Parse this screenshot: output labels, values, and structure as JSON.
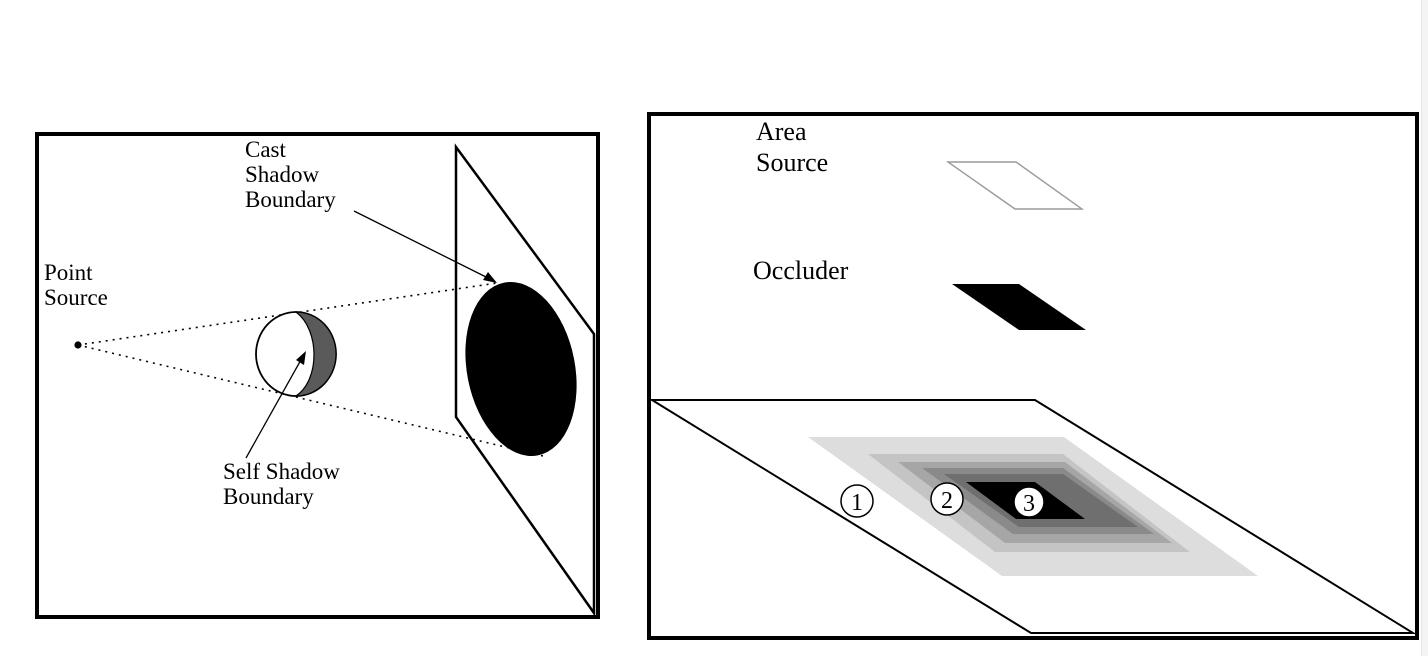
{
  "point_source_figure": {
    "point_source_label": [
      "Point",
      "Source"
    ],
    "cast_shadow_label": [
      "Cast",
      "Shadow",
      "Boundary"
    ],
    "self_shadow_label": [
      "Self Shadow",
      "Boundary"
    ]
  },
  "area_source_figure": {
    "area_source_label": [
      "Area",
      "Source"
    ],
    "occluder_label": "Occluder",
    "regions": [
      "1",
      "2",
      "3"
    ]
  },
  "colors": {
    "ink": "#000000",
    "self_shadow_fill": "#5a5a5a",
    "penumbra_1": "#dddddd",
    "penumbra_2": "#c4c4c4",
    "penumbra_3": "#a6a6a6",
    "penumbra_4": "#8a8a8a",
    "penumbra_5": "#6f6f6f",
    "umbra": "#000000"
  }
}
